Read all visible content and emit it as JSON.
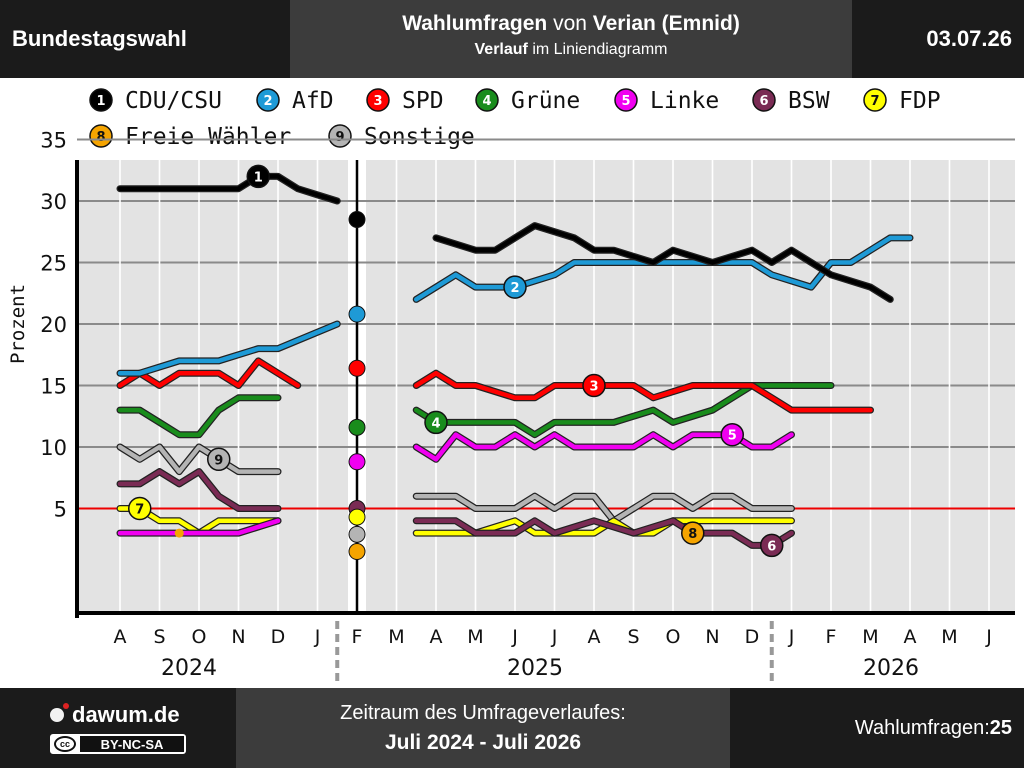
{
  "header": {
    "left_title": "Bundestagswahl",
    "title_part1": "Wahlumfragen",
    "title_part2": " von ",
    "title_part3": "Verian (Emnid)",
    "subtitle_part1": "Verlauf",
    "subtitle_part2": " im Liniendiagramm",
    "date": "03.07.26"
  },
  "footer": {
    "brand": "dawum.de",
    "license": "BY-NC-SA",
    "license_mark": "cc",
    "range_label": "Zeitraum des Umfrageverlaufes:",
    "range_value": "Juli 2024 - Juli 2026",
    "count_label": "Wahlumfragen: ",
    "count_value": "25"
  },
  "chart_data": {
    "type": "line",
    "ylabel": "Prozent",
    "ylim": [
      0,
      37
    ],
    "yticks": [
      5,
      10,
      15,
      20,
      25,
      30,
      35
    ],
    "grid": true,
    "legend_position": "top",
    "months": [
      "A",
      "S",
      "O",
      "N",
      "D",
      "J",
      "F",
      "M",
      "A",
      "M",
      "J",
      "J",
      "A",
      "S",
      "O",
      "N",
      "D",
      "J",
      "F",
      "M",
      "A",
      "M",
      "J"
    ],
    "years": [
      "2024",
      "2025",
      "2026"
    ],
    "threshold": 5,
    "election_month": "F",
    "series": [
      {
        "num": "1",
        "name": "CDU/CSU",
        "color": "#000000",
        "text": "#ffffff",
        "pre": [
          [
            0.0,
            31
          ],
          [
            1.0,
            31
          ],
          [
            2.0,
            31
          ],
          [
            3.0,
            31
          ],
          [
            3.5,
            32
          ],
          [
            4.0,
            32
          ],
          [
            4.5,
            31
          ],
          [
            5.0,
            30.5
          ],
          [
            5.5,
            30
          ]
        ],
        "post": [
          [
            8.0,
            27
          ],
          [
            9.0,
            26
          ],
          [
            9.5,
            26
          ],
          [
            10.0,
            27
          ],
          [
            10.5,
            28
          ],
          [
            11.5,
            27
          ],
          [
            12.0,
            26
          ],
          [
            12.5,
            26
          ],
          [
            13.5,
            25
          ],
          [
            14.0,
            26
          ],
          [
            15.0,
            25
          ],
          [
            16.0,
            26
          ],
          [
            16.5,
            25
          ],
          [
            17.0,
            26
          ],
          [
            17.5,
            25
          ],
          [
            18.0,
            24
          ],
          [
            19.0,
            23
          ],
          [
            19.5,
            22
          ]
        ],
        "election_result": 28.5,
        "label_at": [
          3.5,
          32
        ]
      },
      {
        "num": "2",
        "name": "AfD",
        "color": "#1e9ad6",
        "text": "#ffffff",
        "pre": [
          [
            0.0,
            16
          ],
          [
            0.5,
            16
          ],
          [
            1.5,
            17
          ],
          [
            2.5,
            17
          ],
          [
            3.5,
            18
          ],
          [
            4.0,
            18
          ],
          [
            5.5,
            20
          ]
        ],
        "post": [
          [
            7.5,
            22
          ],
          [
            8.0,
            23
          ],
          [
            8.5,
            24
          ],
          [
            9.0,
            23
          ],
          [
            9.5,
            23
          ],
          [
            10.0,
            23
          ],
          [
            11.0,
            24
          ],
          [
            11.5,
            25
          ],
          [
            12.0,
            25
          ],
          [
            13.0,
            25
          ],
          [
            14.0,
            25
          ],
          [
            15.0,
            25
          ],
          [
            16.0,
            25
          ],
          [
            16.5,
            24
          ],
          [
            17.5,
            23
          ],
          [
            18.0,
            25
          ],
          [
            18.5,
            25
          ],
          [
            19.0,
            26
          ],
          [
            19.5,
            27
          ],
          [
            20.0,
            27
          ]
        ],
        "election_result": 20.8,
        "label_at": [
          10.0,
          23
        ]
      },
      {
        "num": "3",
        "name": "SPD",
        "color": "#ff0000",
        "text": "#ffffff",
        "pre": [
          [
            0.0,
            15
          ],
          [
            0.5,
            16
          ],
          [
            1.0,
            15
          ],
          [
            1.5,
            16
          ],
          [
            2.5,
            16
          ],
          [
            3.0,
            15
          ],
          [
            3.5,
            17
          ],
          [
            4.0,
            16
          ],
          [
            4.5,
            15
          ]
        ],
        "post": [
          [
            7.5,
            15
          ],
          [
            8.0,
            16
          ],
          [
            8.5,
            15
          ],
          [
            9.0,
            15
          ],
          [
            10.0,
            14
          ],
          [
            10.5,
            14
          ],
          [
            11.0,
            15
          ],
          [
            12.0,
            15
          ],
          [
            13.0,
            15
          ],
          [
            13.5,
            14
          ],
          [
            14.5,
            15
          ],
          [
            15.0,
            15
          ],
          [
            16.0,
            15
          ],
          [
            16.5,
            14
          ],
          [
            17.0,
            13
          ],
          [
            18.0,
            13
          ],
          [
            19.0,
            13
          ]
        ],
        "election_result": 16.4,
        "label_at": [
          12.0,
          15
        ]
      },
      {
        "num": "4",
        "name": "Grüne",
        "color": "#198c1c",
        "text": "#ffffff",
        "pre": [
          [
            0.0,
            13
          ],
          [
            0.5,
            13
          ],
          [
            1.0,
            12
          ],
          [
            1.5,
            11
          ],
          [
            2.0,
            11
          ],
          [
            2.5,
            13
          ],
          [
            3.0,
            14
          ],
          [
            3.5,
            14
          ],
          [
            4.0,
            14
          ]
        ],
        "post": [
          [
            7.5,
            13
          ],
          [
            8.0,
            12
          ],
          [
            9.0,
            12
          ],
          [
            10.0,
            12
          ],
          [
            10.5,
            11
          ],
          [
            11.0,
            12
          ],
          [
            12.5,
            12
          ],
          [
            13.5,
            13
          ],
          [
            14.0,
            12
          ],
          [
            15.0,
            13
          ],
          [
            15.5,
            14
          ],
          [
            16.0,
            15
          ],
          [
            17.0,
            15
          ],
          [
            18.0,
            15
          ]
        ],
        "election_result": 11.6,
        "label_at": [
          8.0,
          12
        ]
      },
      {
        "num": "5",
        "name": "Linke",
        "color": "#f000f0",
        "text": "#ffffff",
        "pre": [
          [
            0.0,
            3
          ],
          [
            1.0,
            3
          ],
          [
            2.0,
            3
          ],
          [
            3.0,
            3
          ],
          [
            4.0,
            4
          ]
        ],
        "post": [
          [
            7.5,
            10
          ],
          [
            8.0,
            9
          ],
          [
            8.5,
            11
          ],
          [
            9.0,
            10
          ],
          [
            9.5,
            10
          ],
          [
            10.0,
            11
          ],
          [
            10.5,
            10
          ],
          [
            11.0,
            11
          ],
          [
            11.5,
            10
          ],
          [
            12.0,
            10
          ],
          [
            13.0,
            10
          ],
          [
            13.5,
            11
          ],
          [
            14.0,
            10
          ],
          [
            14.5,
            11
          ],
          [
            15.5,
            11
          ],
          [
            16.0,
            10
          ],
          [
            16.5,
            10
          ],
          [
            17.0,
            11
          ]
        ],
        "election_result": 8.8,
        "label_at": [
          15.5,
          11
        ]
      },
      {
        "num": "6",
        "name": "BSW",
        "color": "#7a2b54",
        "text": "#ffffff",
        "pre": [
          [
            0.0,
            7
          ],
          [
            0.5,
            7
          ],
          [
            1.0,
            8
          ],
          [
            1.5,
            7
          ],
          [
            2.0,
            8
          ],
          [
            2.5,
            6
          ],
          [
            3.0,
            5
          ],
          [
            4.0,
            5
          ]
        ],
        "post": [
          [
            7.5,
            4
          ],
          [
            8.5,
            4
          ],
          [
            9.0,
            3
          ],
          [
            10.0,
            3
          ],
          [
            10.5,
            4
          ],
          [
            11.0,
            3
          ],
          [
            12.0,
            4
          ],
          [
            13.0,
            3
          ],
          [
            14.0,
            4
          ],
          [
            14.5,
            3
          ],
          [
            15.0,
            3
          ],
          [
            15.5,
            3
          ],
          [
            16.0,
            2
          ],
          [
            16.5,
            2
          ],
          [
            17.0,
            3
          ]
        ],
        "election_result": 5.0,
        "label_at": [
          16.5,
          2
        ]
      },
      {
        "num": "7",
        "name": "FDP",
        "color": "#ffff00",
        "text": "#111111",
        "pre": [
          [
            0.0,
            5
          ],
          [
            0.5,
            5
          ],
          [
            1.0,
            4
          ],
          [
            1.5,
            4
          ],
          [
            2.0,
            3
          ],
          [
            2.5,
            4
          ],
          [
            3.0,
            4
          ],
          [
            4.0,
            4
          ]
        ],
        "post": [
          [
            7.5,
            3
          ],
          [
            8.5,
            3
          ],
          [
            9.0,
            3
          ],
          [
            10.0,
            4
          ],
          [
            10.5,
            3
          ],
          [
            11.0,
            3
          ],
          [
            12.0,
            3
          ],
          [
            12.5,
            4
          ],
          [
            13.0,
            3
          ],
          [
            13.5,
            3
          ],
          [
            14.0,
            4
          ],
          [
            14.5,
            4
          ],
          [
            15.0,
            4
          ],
          [
            16.0,
            4
          ],
          [
            17.0,
            4
          ]
        ],
        "election_result": 4.3,
        "label_at": [
          0.5,
          5
        ]
      },
      {
        "num": "8",
        "name": "Freie Wähler",
        "color": "#f5a400",
        "text": "#111111",
        "pre": [],
        "post": [],
        "election_result": 1.5,
        "label_at": [
          14.5,
          3
        ]
      },
      {
        "num": "9",
        "name": "Sonstige",
        "color": "#b4b4b4",
        "text": "#111111",
        "pre": [
          [
            0.0,
            10
          ],
          [
            0.5,
            9
          ],
          [
            1.0,
            10
          ],
          [
            1.5,
            8
          ],
          [
            2.0,
            10
          ],
          [
            2.5,
            9
          ],
          [
            3.0,
            8
          ],
          [
            4.0,
            8
          ]
        ],
        "post": [
          [
            7.5,
            6
          ],
          [
            8.0,
            6
          ],
          [
            8.5,
            6
          ],
          [
            9.0,
            5
          ],
          [
            9.5,
            5
          ],
          [
            10.0,
            5
          ],
          [
            10.5,
            6
          ],
          [
            11.0,
            5
          ],
          [
            11.5,
            6
          ],
          [
            12.0,
            6
          ],
          [
            12.5,
            4
          ],
          [
            13.0,
            5
          ],
          [
            13.5,
            6
          ],
          [
            14.0,
            6
          ],
          [
            14.5,
            5
          ],
          [
            15.0,
            6
          ],
          [
            15.5,
            6
          ],
          [
            16.0,
            5
          ],
          [
            17.0,
            5
          ]
        ],
        "election_result": 2.9,
        "label_at": [
          2.5,
          9
        ]
      }
    ]
  }
}
